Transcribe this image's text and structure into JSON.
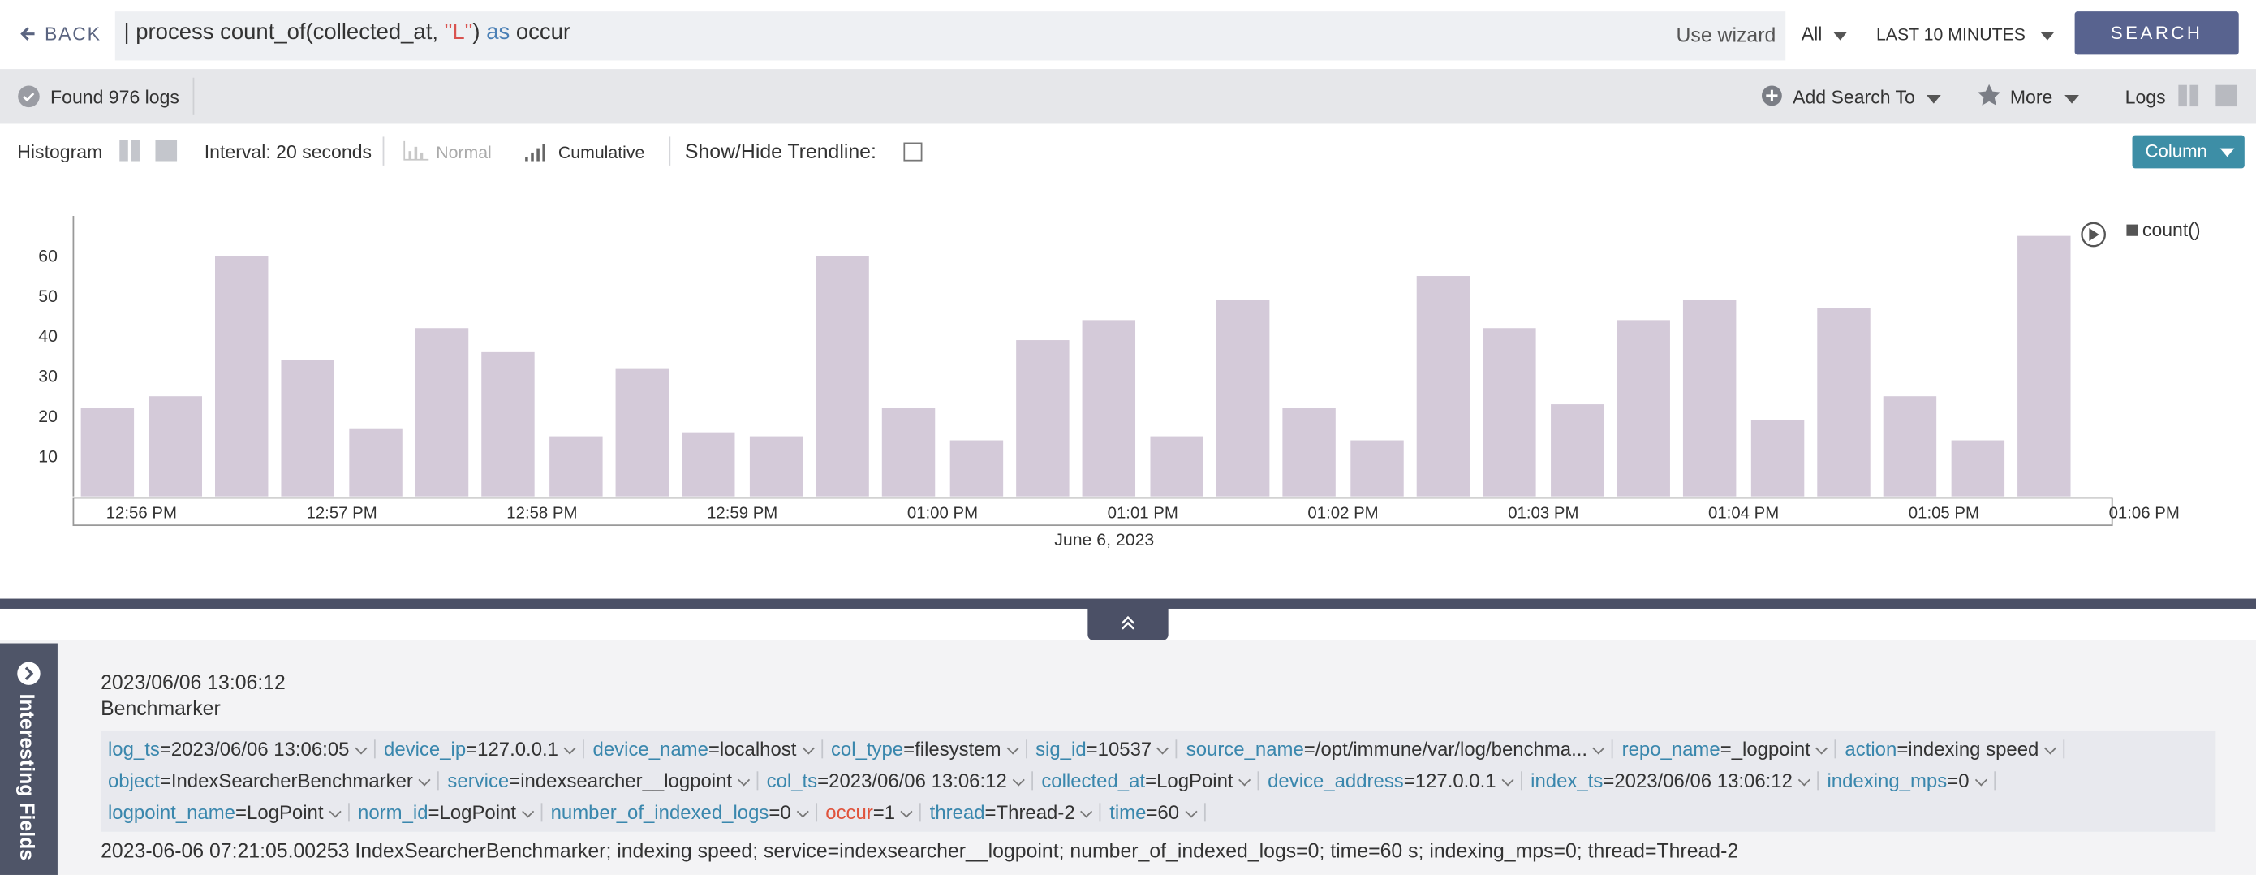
{
  "search": {
    "back": "BACK",
    "query": [
      {
        "text": "| process count_of(collected_at, ",
        "color": "#333333"
      },
      {
        "text": "\"L\"",
        "color": "#d9534f"
      },
      {
        "text": ") ",
        "color": "#333333"
      },
      {
        "text": "as",
        "color": "#4a7fb5"
      },
      {
        "text": " occur",
        "color": "#333333"
      }
    ],
    "wizard": "Use wizard",
    "repo": "All",
    "time_range": "LAST 10 MINUTES",
    "button": "SEARCH"
  },
  "status": {
    "found": "Found 976 logs",
    "add_search": "Add Search To",
    "more": "More",
    "logs": "Logs"
  },
  "toolbar": {
    "histogram": "Histogram",
    "interval": "Interval: 20 seconds",
    "normal": "Normal",
    "cumulative": "Cumulative",
    "trendline": "Show/Hide Trendline:",
    "chart_kind": "Column"
  },
  "chart_data": {
    "type": "bar",
    "color": "#d4cad9",
    "xlabel": "June 6, 2023",
    "legend": "count()",
    "series": [
      {
        "name": "count()",
        "color": "#d4cad9",
        "x": [
          55.83,
          56.17,
          56.5,
          56.83,
          57.17,
          57.5,
          57.83,
          58.17,
          58.5,
          58.83,
          59.17,
          59.5,
          59.83,
          60.17,
          60.5,
          60.83,
          61.17,
          61.5,
          61.83,
          62.17,
          62.5,
          62.83,
          63.17,
          63.5,
          63.83,
          64.17,
          64.5,
          64.83,
          65.17,
          65.5
        ],
        "values": [
          22,
          25,
          60,
          34,
          17,
          42,
          36,
          15,
          32,
          16,
          15,
          60,
          22,
          14,
          39,
          44,
          15,
          49,
          22,
          14,
          55,
          42,
          23,
          44,
          49,
          19,
          47,
          25,
          14,
          65
        ]
      }
    ],
    "xlim": [
      55.66,
      65.84
    ],
    "xticks": [
      {
        "value": 56,
        "label": "12:56 PM"
      },
      {
        "value": 57,
        "label": "12:57 PM"
      },
      {
        "value": 58,
        "label": "12:58 PM"
      },
      {
        "value": 59,
        "label": "12:59 PM"
      },
      {
        "value": 60,
        "label": "01:00 PM"
      },
      {
        "value": 61,
        "label": "01:01 PM"
      },
      {
        "value": 62,
        "label": "01:02 PM"
      },
      {
        "value": 63,
        "label": "01:03 PM"
      },
      {
        "value": 64,
        "label": "01:04 PM"
      },
      {
        "value": 65,
        "label": "01:05 PM"
      },
      {
        "value": 66,
        "label": "01:06 PM"
      }
    ],
    "ylim": [
      0,
      70
    ],
    "yticks": [
      10,
      20,
      30,
      40,
      50,
      60
    ],
    "grid": false
  },
  "log": {
    "sidebar": "Interesting Fields",
    "timestamp": "2023/06/06 13:06:12",
    "source": "Benchmarker",
    "assign": "=",
    "fields": [
      {
        "key": "log_ts",
        "value": "2023/06/06 13:06:05"
      },
      {
        "key": "device_ip",
        "value": "127.0.0.1"
      },
      {
        "key": "device_name",
        "value": "localhost"
      },
      {
        "key": "col_type",
        "value": "filesystem"
      },
      {
        "key": "sig_id",
        "value": "10537"
      },
      {
        "key": "source_name",
        "value": "/opt/immune/var/log/benchma..."
      },
      {
        "key": "repo_name",
        "value": "_logpoint"
      },
      {
        "key": "action",
        "value": "indexing speed"
      },
      {
        "key": "object",
        "value": "IndexSearcherBenchmarker"
      },
      {
        "key": "service",
        "value": "indexsearcher__logpoint"
      },
      {
        "key": "col_ts",
        "value": "2023/06/06 13:06:12"
      },
      {
        "key": "collected_at",
        "value": "LogPoint"
      },
      {
        "key": "device_address",
        "value": "127.0.0.1"
      },
      {
        "key": "index_ts",
        "value": "2023/06/06 13:06:12"
      },
      {
        "key": "indexing_mps",
        "value": "0"
      },
      {
        "key": "logpoint_name",
        "value": "LogPoint"
      },
      {
        "key": "norm_id",
        "value": "LogPoint"
      },
      {
        "key": "number_of_indexed_logs",
        "value": "0"
      },
      {
        "key": "occur",
        "value": "1",
        "highlight": true
      },
      {
        "key": "thread",
        "value": "Thread-2"
      },
      {
        "key": "time",
        "value": "60"
      }
    ],
    "raw": "2023-06-06 07:21:05.00253 IndexSearcherBenchmarker; indexing speed; service=indexsearcher__logpoint; number_of_indexed_logs=0; time=60 s; indexing_mps=0; thread=Thread-2"
  }
}
